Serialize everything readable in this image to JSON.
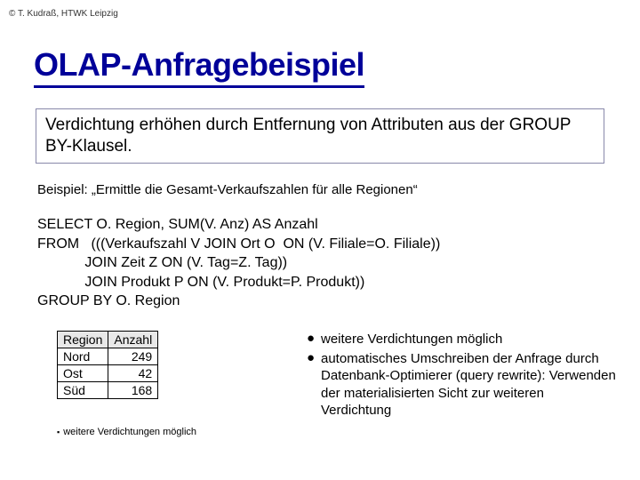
{
  "copyright": "© T. Kudraß, HTWK Leipzig",
  "title": "OLAP-Anfragebeispiel",
  "box_text": "Verdichtung erhöhen durch Entfernung von Attributen aus der GROUP BY-Klausel.",
  "example_label": "Beispiel: „Ermittle die Gesamt-Verkaufszahlen für alle Regionen“",
  "sql": "SELECT O. Region, SUM(V. Anz) AS Anzahl\nFROM   (((Verkaufszahl V JOIN Ort O  ON (V. Filiale=O. Filiale))\n            JOIN Zeit Z ON (V. Tag=Z. Tag))\n            JOIN Produkt P ON (V. Produkt=P. Produkt))\nGROUP BY O. Region",
  "table": {
    "columns": [
      "Region",
      "Anzahl"
    ],
    "rows": [
      [
        "Nord",
        "249"
      ],
      [
        "Ost",
        "42"
      ],
      [
        "Süd",
        "168"
      ]
    ]
  },
  "bullets": [
    "weitere Verdichtungen möglich",
    "automatisches Umschreiben der Anfrage durch Datenbank-Optimierer (query rewrite): Verwenden der materialisierten Sicht zur weiteren Verdichtung"
  ],
  "footnote": "weitere Verdichtungen möglich",
  "colors": {
    "title": "#000099",
    "background": "#ffffff",
    "text": "#000000",
    "box_border": "#8888aa",
    "table_header_bg": "#e8e8e8"
  }
}
